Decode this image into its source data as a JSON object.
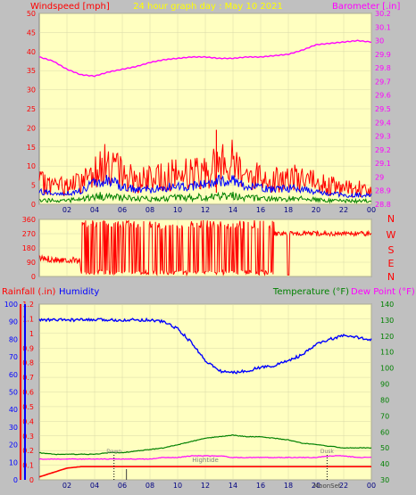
{
  "colors": {
    "panel_bg": "#ffffc0",
    "outer_bg": "#c0c0c0",
    "wind": "#ff0000",
    "wind_avg": "#0000ff",
    "wind_calm": "#008000",
    "barometer": "#ff00ff",
    "direction": "#ff0000",
    "rain": "#ff0000",
    "humidity": "#0000ff",
    "temperature": "#008000",
    "dewpoint": "#ff00ff",
    "title": "#ffff00"
  },
  "chart_data": [
    {
      "type": "line",
      "title": "24 hour graph day : May 10 2021",
      "x_tick_labels": [
        "02",
        "04",
        "06",
        "08",
        "10",
        "12",
        "14",
        "16",
        "18",
        "20",
        "22",
        "00"
      ],
      "left_axis": {
        "label": "Windspeed [mph]",
        "ticks": [
          0,
          5,
          10,
          15,
          20,
          25,
          30,
          35,
          40,
          45,
          50
        ],
        "ylim": [
          0,
          50
        ]
      },
      "right_axis": {
        "label": "Barometer [.in]",
        "ticks": [
          "28.8",
          "28.9",
          "29",
          "29.1",
          "29.2",
          "29.3",
          "29.4",
          "29.5",
          "29.6",
          "29.7",
          "29.8",
          "29.9",
          "30",
          "30.1",
          "30.2"
        ],
        "ylim": [
          28.8,
          30.2
        ]
      },
      "series": [
        {
          "name": "Windspeed [mph]",
          "x": [
            0,
            1,
            2,
            3,
            4,
            5,
            6,
            7,
            8,
            9,
            10,
            11,
            12,
            13,
            14,
            15,
            16,
            17,
            18,
            19,
            20,
            21,
            22,
            23,
            24
          ],
          "y": [
            7,
            6,
            6,
            7,
            12,
            13,
            10,
            8,
            8,
            9,
            10,
            10,
            11,
            13,
            14,
            10,
            9,
            8,
            9,
            8,
            7,
            6,
            5,
            5,
            5
          ]
        },
        {
          "name": "Barometer [.in]",
          "x": [
            0,
            1,
            2,
            3,
            4,
            5,
            6,
            7,
            8,
            9,
            10,
            11,
            12,
            13,
            14,
            15,
            16,
            17,
            18,
            19,
            20,
            21,
            22,
            23,
            24
          ],
          "y": [
            29.88,
            29.85,
            29.79,
            29.75,
            29.74,
            29.77,
            29.79,
            29.81,
            29.84,
            29.86,
            29.87,
            29.88,
            29.88,
            29.87,
            29.87,
            29.88,
            29.88,
            29.89,
            29.9,
            29.93,
            29.97,
            29.98,
            29.99,
            30.0,
            29.99
          ]
        }
      ]
    },
    {
      "type": "line",
      "left_axis": {
        "ticks": [
          0,
          90,
          180,
          270,
          360
        ],
        "ylim": [
          0,
          360
        ]
      },
      "right_axis": {
        "labels": [
          "N",
          "W",
          "S",
          "E",
          "N"
        ]
      },
      "series": [
        {
          "name": "Wind direction",
          "x": [
            0,
            1,
            2,
            3,
            4,
            5,
            6,
            7,
            8,
            9,
            10,
            11,
            12,
            13,
            14,
            15,
            16,
            17,
            18,
            19,
            20,
            21,
            22,
            23,
            24
          ],
          "y": [
            110,
            110,
            95,
            20,
            330,
            20,
            330,
            15,
            320,
            340,
            330,
            20,
            340,
            320,
            330,
            340,
            330,
            270,
            270,
            270,
            275,
            280,
            270,
            265,
            255
          ]
        }
      ]
    },
    {
      "type": "line",
      "left_axis_1": {
        "label": "Rainfall (.in)",
        "ticks": [
          "0",
          "0.1",
          "0.2",
          "0.3",
          "0.4",
          "0.5",
          "0.6",
          "0.7",
          "0.8",
          "0.9",
          "1",
          "1.1",
          "1.2"
        ],
        "ylim": [
          0,
          1.2
        ]
      },
      "left_axis_2": {
        "label": "Humidity",
        "ticks": [
          "0",
          "10",
          "20",
          "30",
          "40",
          "50",
          "60",
          "70",
          "80",
          "90",
          "100"
        ],
        "ylim": [
          0,
          100
        ]
      },
      "right_axis": {
        "label": "Temperature (°F)",
        "label2": "Dew Point (°F)",
        "ticks": [
          "30",
          "40",
          "50",
          "60",
          "70",
          "80",
          "90",
          "100",
          "110",
          "120",
          "130",
          "140"
        ],
        "ylim": [
          30,
          140
        ]
      },
      "x_tick_labels": [
        "02",
        "04",
        "06",
        "08",
        "10",
        "12",
        "14",
        "16",
        "18",
        "20",
        "22",
        "00"
      ],
      "annotations": [
        "Hightide",
        "MoonSet",
        "Dawn",
        "Dusk"
      ],
      "series": [
        {
          "name": "Humidity",
          "x": [
            0,
            1,
            2,
            3,
            4,
            5,
            6,
            7,
            8,
            9,
            10,
            11,
            12,
            13,
            14,
            15,
            16,
            17,
            18,
            19,
            20,
            21,
            22,
            23,
            24
          ],
          "y": [
            91,
            91,
            91,
            91,
            91,
            91,
            91,
            91,
            91,
            90,
            86,
            78,
            68,
            62,
            61,
            62,
            64,
            65,
            68,
            71,
            77,
            80,
            82,
            81,
            80
          ]
        },
        {
          "name": "Temperature (°F)",
          "x": [
            0,
            1,
            2,
            3,
            4,
            5,
            6,
            7,
            8,
            9,
            10,
            11,
            12,
            13,
            14,
            15,
            16,
            17,
            18,
            19,
            20,
            21,
            22,
            23,
            24
          ],
          "y": [
            47,
            46,
            46,
            46,
            46,
            47,
            47,
            48,
            49,
            50,
            52,
            54,
            56,
            57,
            58,
            57,
            57,
            56,
            55,
            53,
            52,
            51,
            50,
            50,
            50
          ]
        },
        {
          "name": "Dew Point (°F)",
          "x": [
            0,
            1,
            2,
            3,
            4,
            5,
            6,
            7,
            8,
            9,
            10,
            11,
            12,
            13,
            14,
            15,
            16,
            17,
            18,
            19,
            20,
            21,
            22,
            23,
            24
          ],
          "y": [
            43,
            43,
            43,
            43,
            43,
            43,
            43,
            43,
            43,
            44,
            44,
            45,
            45,
            45,
            44,
            44,
            44,
            44,
            44,
            44,
            44,
            45,
            45,
            44,
            44
          ]
        },
        {
          "name": "Rainfall (.in)",
          "x": [
            0,
            1,
            2,
            3,
            4,
            5,
            6,
            7,
            8,
            9,
            10,
            11,
            12,
            13,
            14,
            15,
            16,
            17,
            18,
            19,
            20,
            21,
            22,
            23,
            24
          ],
          "y": [
            0.02,
            0.05,
            0.08,
            0.09,
            0.09,
            0.09,
            0.09,
            0.09,
            0.09,
            0.09,
            0.09,
            0.09,
            0.09,
            0.09,
            0.09,
            0.09,
            0.09,
            0.09,
            0.09,
            0.09,
            0.09,
            0.09,
            0.09,
            0.09,
            0.09
          ]
        }
      ]
    }
  ]
}
